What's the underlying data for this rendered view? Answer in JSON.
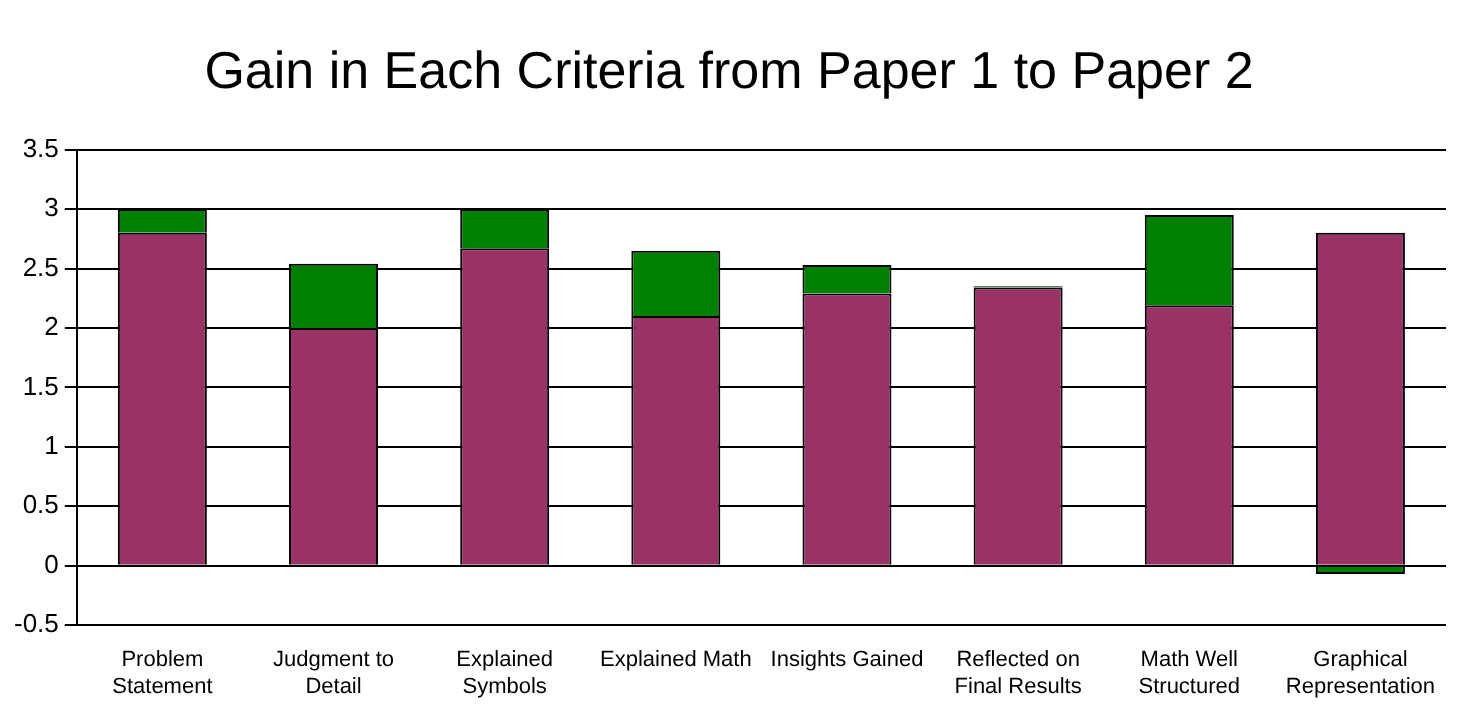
{
  "chart_data": {
    "type": "bar",
    "title": "Gain in Each Criteria from Paper 1 to Paper 2",
    "categories": [
      "Problem Statement",
      "Judgment to Detail",
      "Explained Symbols",
      "Explained Math",
      "Insights Gained",
      "Reflected on Final Results",
      "Math Well Structured",
      "Graphical Representation"
    ],
    "series": [
      {
        "color": "#993366",
        "values": [
          2.8,
          2.0,
          2.67,
          2.1,
          2.29,
          2.34,
          2.19,
          2.8
        ]
      },
      {
        "color": "#008000",
        "values": [
          0.2,
          0.54,
          0.33,
          0.55,
          0.24,
          0.01,
          0.76,
          -0.07
        ]
      }
    ],
    "stacked": true,
    "ylim": [
      -0.5,
      3.5
    ],
    "yticks": [
      -0.5,
      0,
      0.5,
      1,
      1.5,
      2,
      2.5,
      3,
      3.5
    ],
    "grid": "y",
    "legend": false
  }
}
